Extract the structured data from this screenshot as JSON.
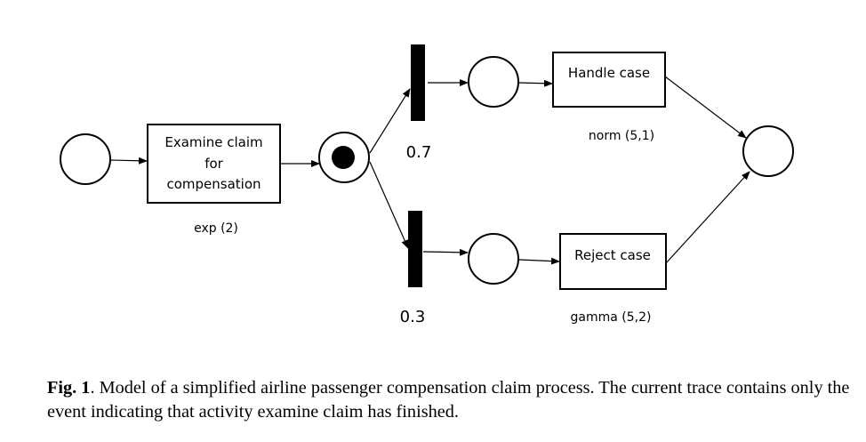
{
  "diagram": {
    "activities": {
      "examine": {
        "lines": [
          "Examine claim",
          "for",
          "compensation"
        ],
        "distribution": "exp (2)"
      },
      "handle": {
        "label": "Handle case",
        "distribution": "norm (5,1)"
      },
      "reject": {
        "label": "Reject case",
        "distribution": "gamma (5,2)"
      }
    },
    "branches": {
      "upper": {
        "probability": "0.7"
      },
      "lower": {
        "probability": "0.3"
      }
    },
    "marked_place_tokens": 1
  },
  "caption": {
    "label": "Fig. 1",
    "text": ". Model of a simplified airline passenger compensation claim process. The current trace contains only the event indicating that activity examine claim has finished."
  }
}
